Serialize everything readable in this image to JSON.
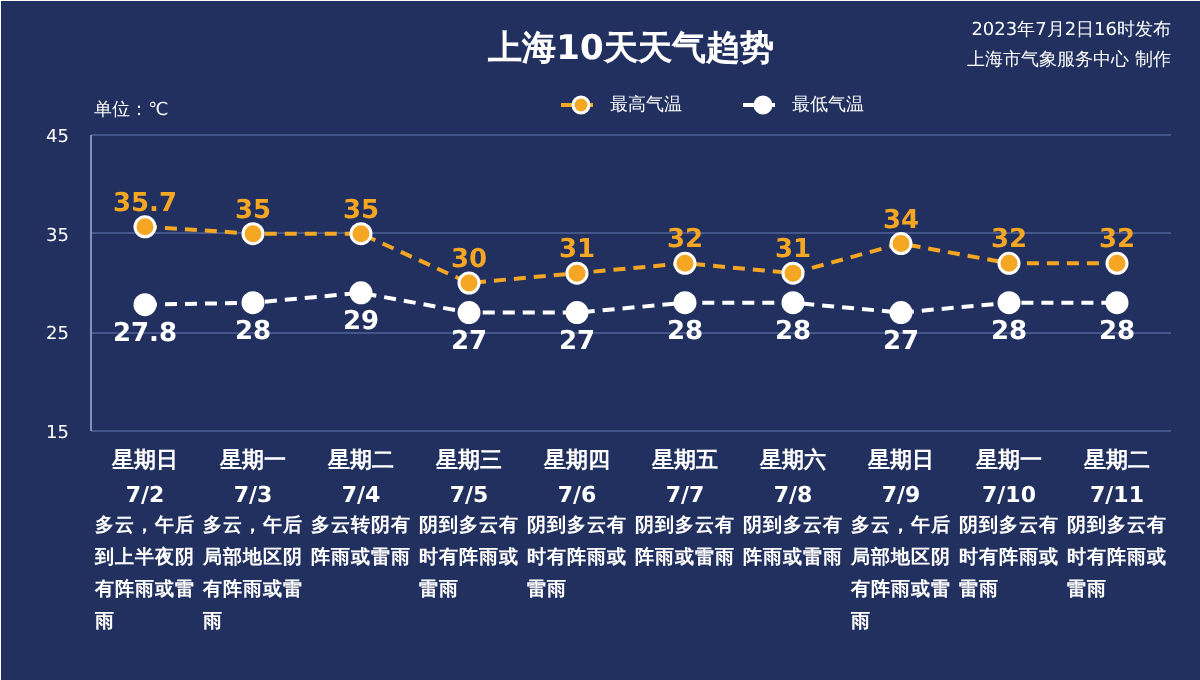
{
  "chart_data": {
    "type": "line",
    "title": "上海10天天气趋势",
    "ylabel": "单位：℃",
    "categories": [
      "星期日\n7/2",
      "星期一\n7/3",
      "星期二\n7/4",
      "星期三\n7/5",
      "星期四\n7/6",
      "星期五\n7/7",
      "星期六\n7/8",
      "星期日\n7/9",
      "星期一\n7/10",
      "星期二\n7/11"
    ],
    "series": [
      {
        "name": "最高气温",
        "color": "#f5a623",
        "values": [
          35.7,
          35,
          35,
          30,
          31,
          32,
          31,
          34,
          32,
          32
        ]
      },
      {
        "name": "最低气温",
        "color": "#ffffff",
        "values": [
          27.8,
          28,
          29,
          27,
          27,
          28,
          28,
          27,
          28,
          28
        ]
      }
    ],
    "ylim": [
      15,
      45
    ],
    "yticks": [
      15,
      25,
      35,
      45
    ],
    "grid": "y",
    "legend": "top",
    "marker": "circle",
    "line_style": "dashed",
    "data_labels": true,
    "annotations": [
      "2023年7月2日16时发布",
      "上海市气象服务中心 制作",
      "多云，午后到上半夜阴有阵雨或雷雨",
      "多云，午后局部地区阴有阵雨或雷雨",
      "多云转阴有阵雨或雷雨",
      "阴到多云有时有阵雨或雷雨",
      "阴到多云有时有阵雨或雷雨",
      "阴到多云有阵雨或雷雨",
      "阴到多云有阵雨或雷雨",
      "多云，午后局部地区阴有阵雨或雷雨",
      "阴到多云有时有阵雨或雷雨",
      "阴到多云有时有阵雨或雷雨"
    ]
  }
}
